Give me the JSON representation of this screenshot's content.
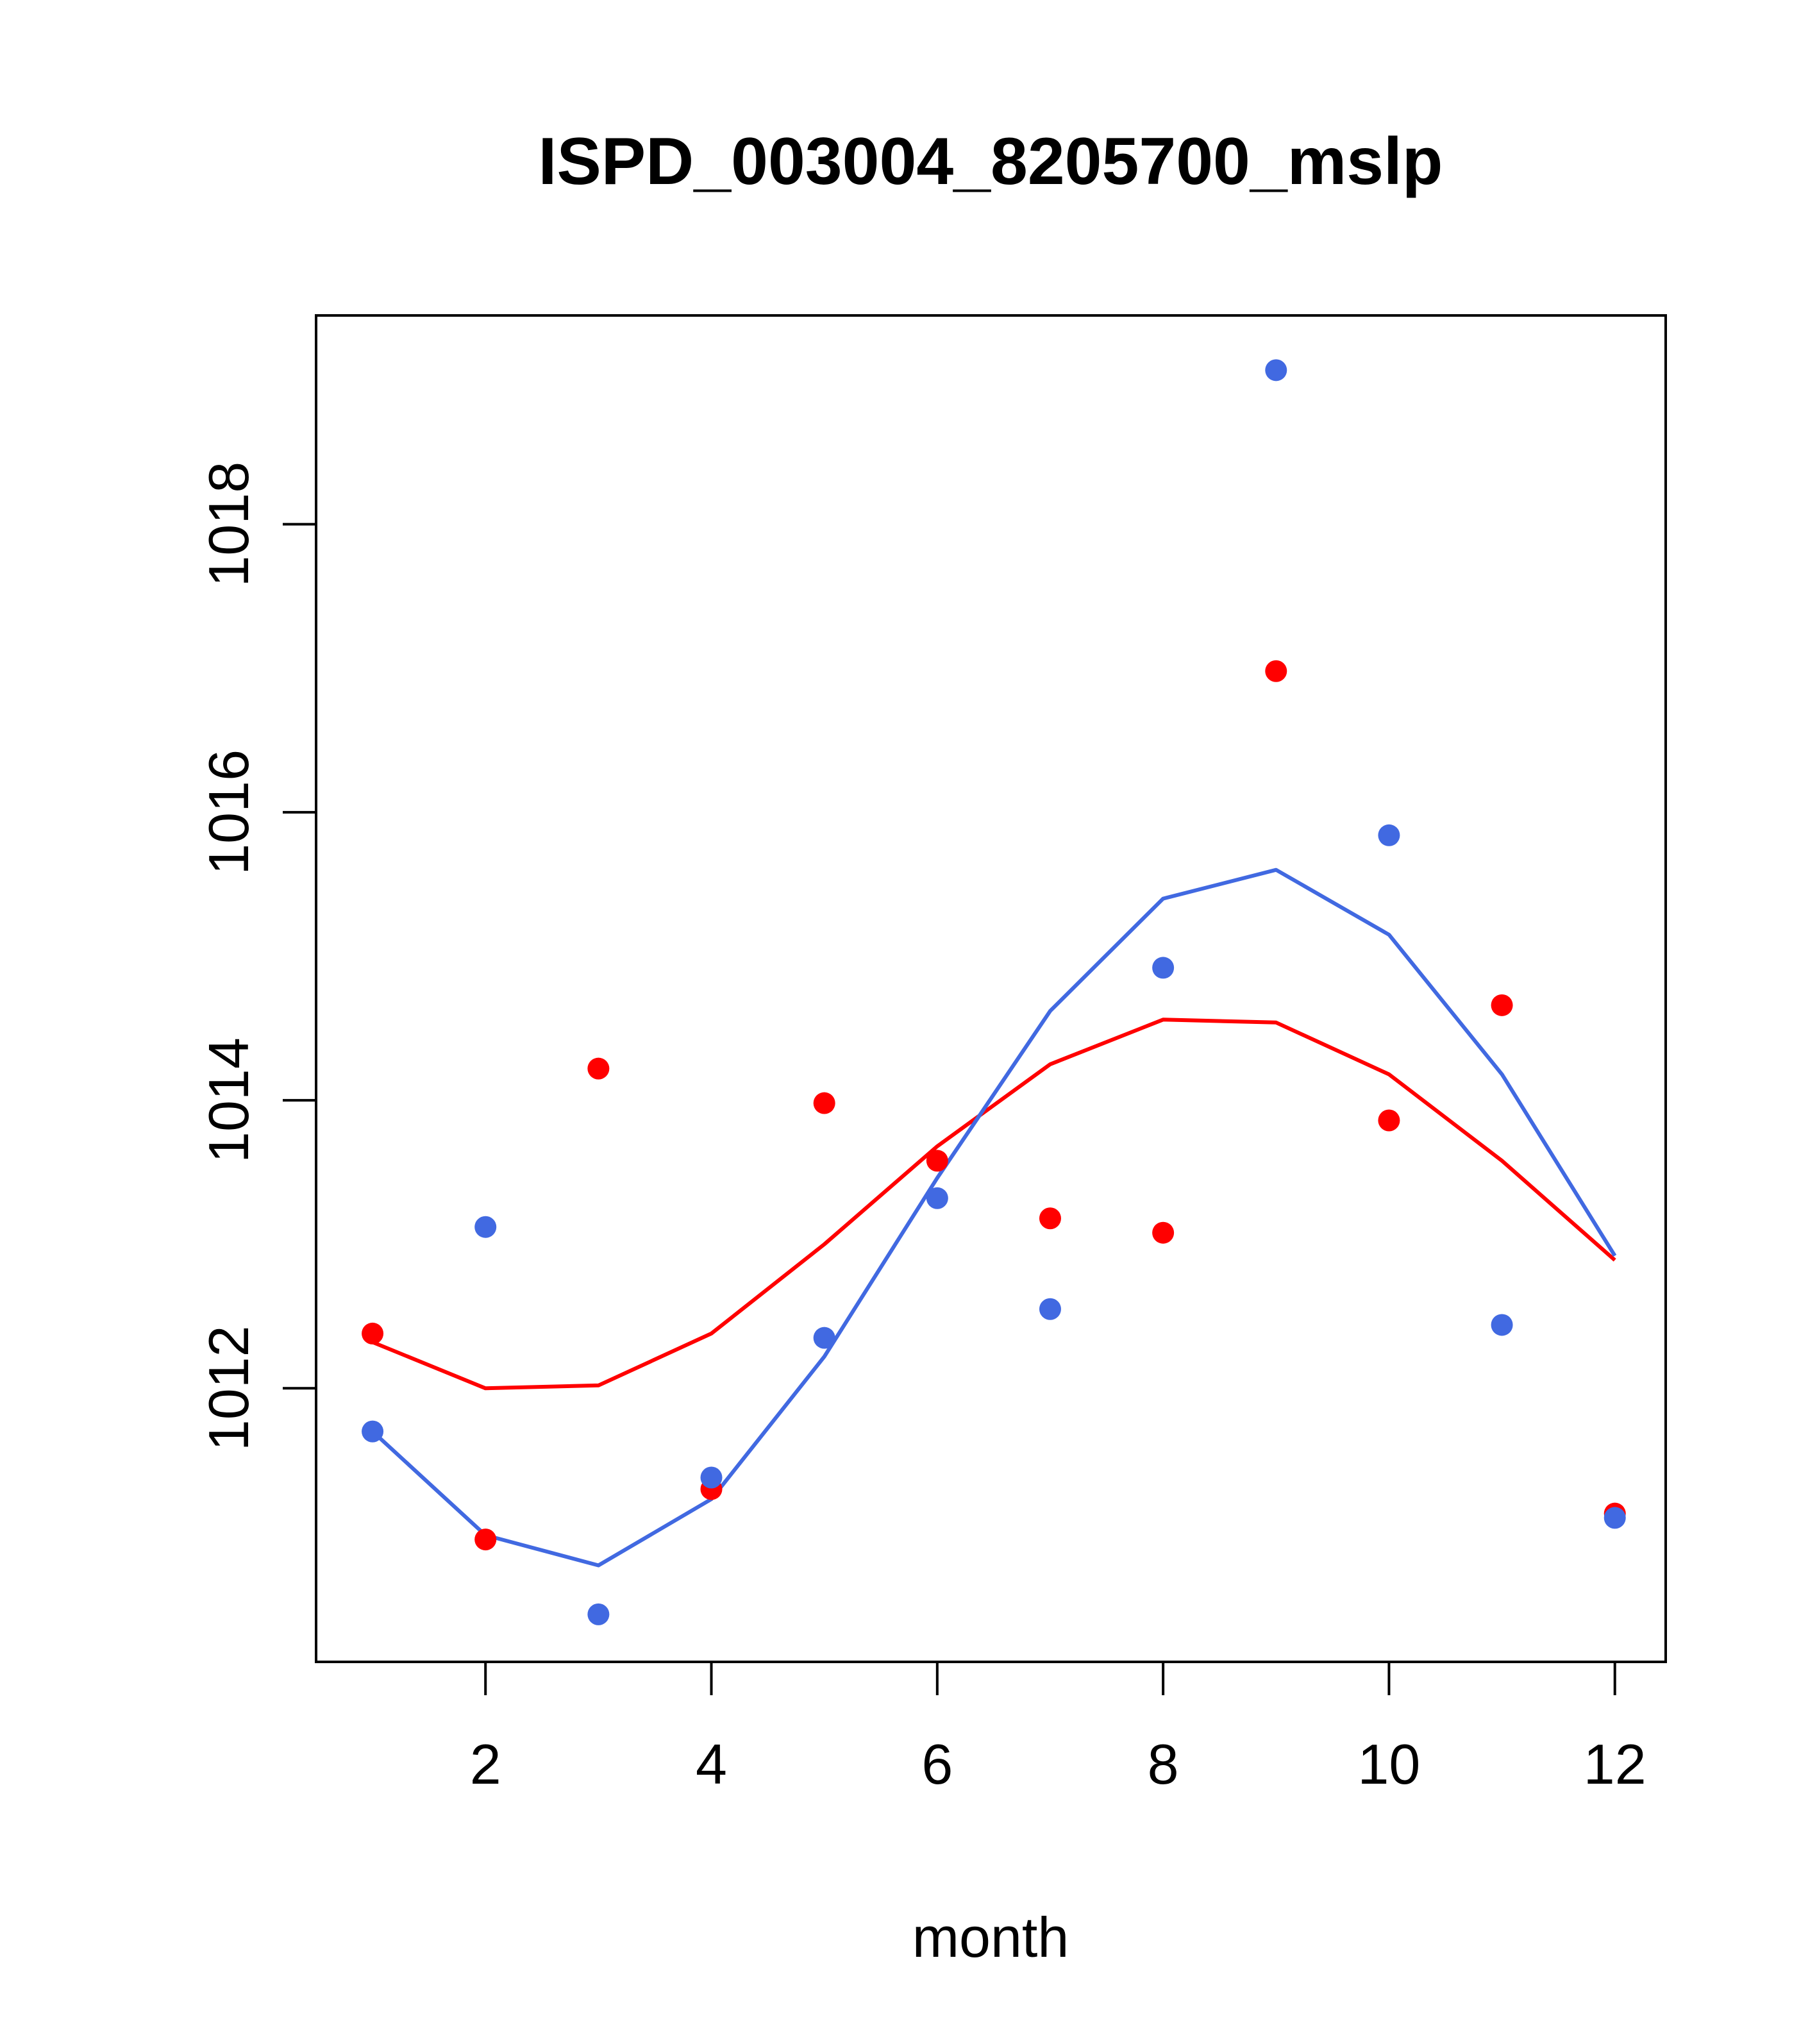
{
  "chart_data": {
    "type": "scatter",
    "title": "ISPD_003004_8205700_mslp",
    "xlabel": "month",
    "ylabel": "",
    "xlim": [
      0.5,
      12.45
    ],
    "ylim": [
      1010.1,
      1019.45
    ],
    "xticks": [
      2,
      4,
      6,
      8,
      10,
      12
    ],
    "yticks": [
      1012,
      1014,
      1016,
      1018
    ],
    "grid": false,
    "legend": "none",
    "x": [
      1,
      2,
      3,
      4,
      5,
      6,
      7,
      8,
      9,
      10,
      11,
      12
    ],
    "series": [
      {
        "kind": "points",
        "color": "#ff0000",
        "values": [
          1012.38,
          1010.95,
          1014.22,
          1011.3,
          1013.98,
          1013.58,
          1013.18,
          1013.08,
          1016.98,
          1013.86,
          1014.66,
          1011.13
        ]
      },
      {
        "kind": "points",
        "color": "#4169e1",
        "values": [
          1011.7,
          1013.12,
          1010.43,
          1011.38,
          1012.35,
          1013.32,
          1012.55,
          1014.92,
          1019.07,
          1015.84,
          1012.44,
          1011.1
        ]
      },
      {
        "kind": "line",
        "color": "#ff0000",
        "values": [
          1012.32,
          1012.0,
          1012.02,
          1012.38,
          1013.0,
          1013.68,
          1014.25,
          1014.56,
          1014.54,
          1014.18,
          1013.58,
          1012.89
        ]
      },
      {
        "kind": "line",
        "color": "#4169e1",
        "values": [
          1011.7,
          1010.98,
          1010.77,
          1011.23,
          1012.22,
          1013.46,
          1014.62,
          1015.4,
          1015.6,
          1015.15,
          1014.18,
          1012.92
        ]
      }
    ]
  }
}
